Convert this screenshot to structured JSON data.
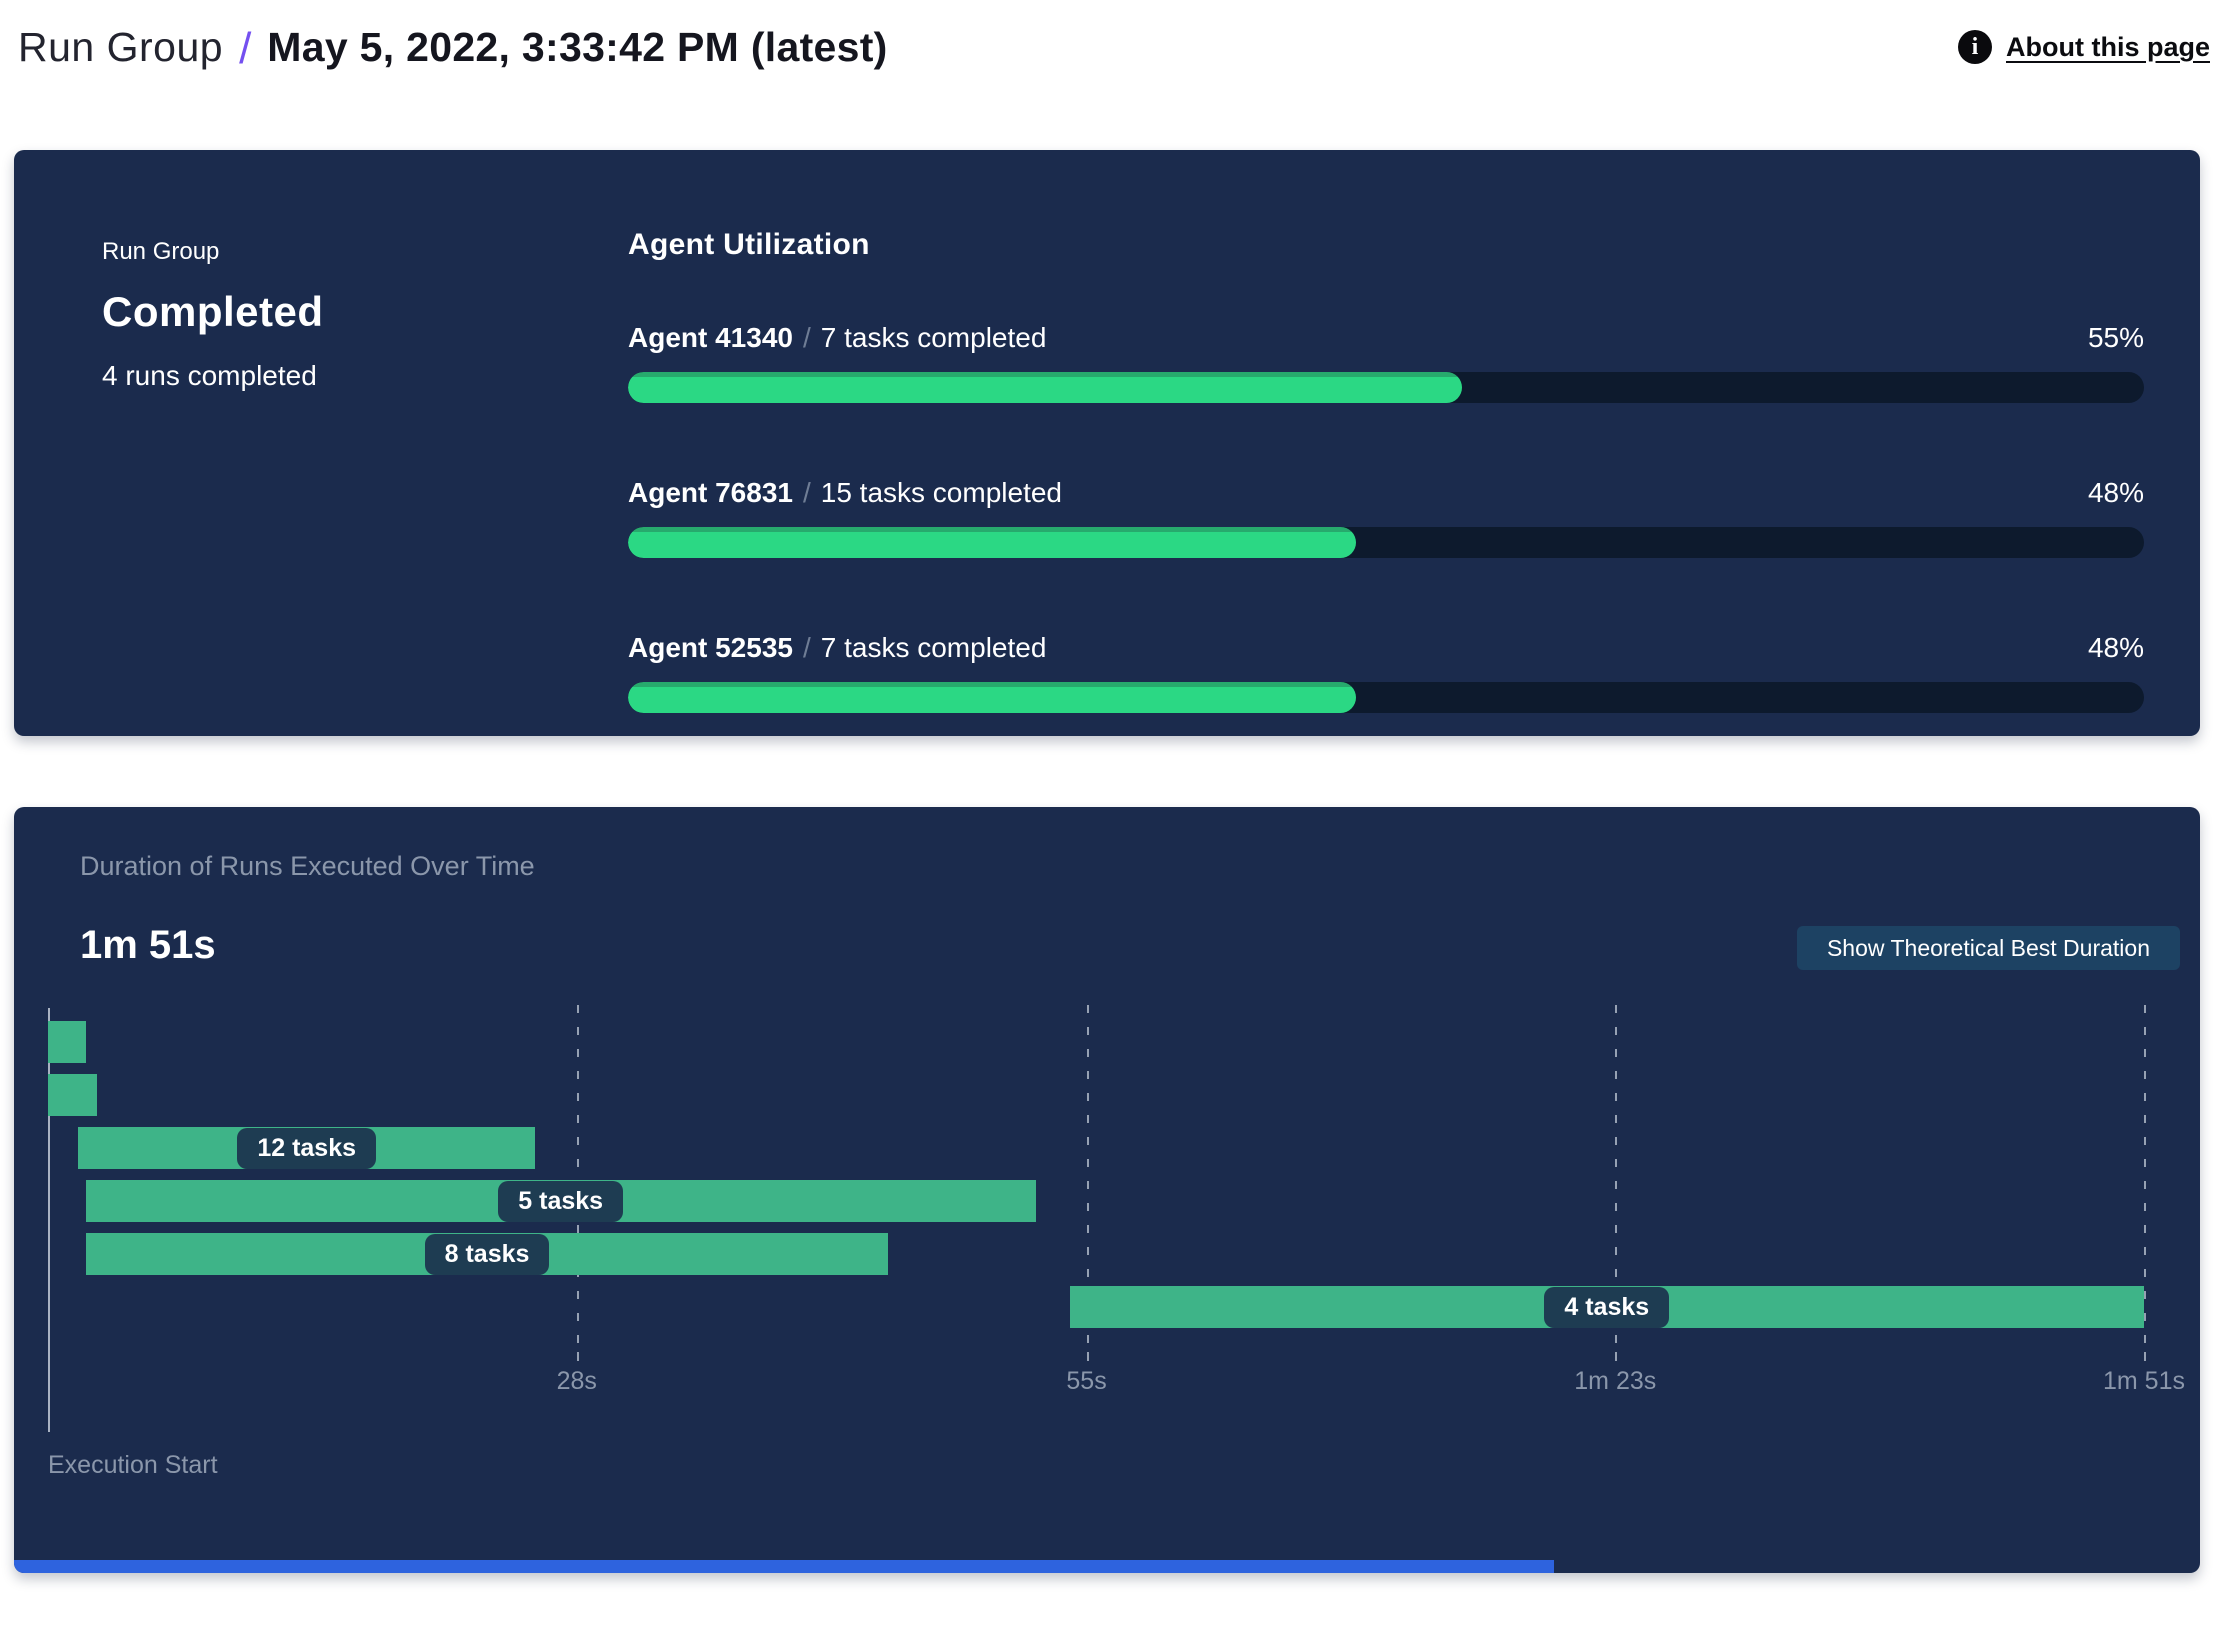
{
  "header": {
    "breadcrumb_root": "Run Group",
    "separator": "/",
    "title": "May 5, 2022, 3:33:42 PM (latest)",
    "about_link": "About this page",
    "info_icon_glyph": "i"
  },
  "summary": {
    "eyebrow": "Run Group",
    "status": "Completed",
    "subtext": "4 runs completed"
  },
  "agent_utilization": {
    "heading": "Agent Utilization",
    "rows": [
      {
        "agent": "Agent 41340",
        "separator": "/",
        "detail": "7 tasks completed",
        "percent_label": "55%",
        "percent_value": 55
      },
      {
        "agent": "Agent 76831",
        "separator": "/",
        "detail": "15 tasks completed",
        "percent_label": "48%",
        "percent_value": 48
      },
      {
        "agent": "Agent 52535",
        "separator": "/",
        "detail": "7 tasks completed",
        "percent_label": "48%",
        "percent_value": 48
      }
    ]
  },
  "duration_panel": {
    "subtitle": "Duration of Runs Executed Over Time",
    "total_duration": "1m 51s",
    "button_label": "Show Theoretical Best Duration",
    "execution_start_label": "Execution Start"
  },
  "chart_data": {
    "type": "bar",
    "variant": "horizontal-gantt",
    "title": "Duration of Runs Executed Over Time",
    "total_duration_label": "1m 51s",
    "x_unit": "seconds",
    "xlim": [
      0,
      111
    ],
    "grid": "dashed-vertical",
    "x_ticks": [
      {
        "label": "28s",
        "value": 28
      },
      {
        "label": "55s",
        "value": 55
      },
      {
        "label": "1m 23s",
        "value": 83
      },
      {
        "label": "1m 51s",
        "value": 111
      }
    ],
    "origin_label": "Execution Start",
    "runs": [
      {
        "start_s": 0,
        "end_s": 2,
        "label": ""
      },
      {
        "start_s": 0,
        "end_s": 2.6,
        "label": ""
      },
      {
        "start_s": 1.6,
        "end_s": 25.8,
        "label": "12 tasks"
      },
      {
        "start_s": 2,
        "end_s": 52.3,
        "label": "5 tasks"
      },
      {
        "start_s": 2,
        "end_s": 44.5,
        "label": "8 tasks"
      },
      {
        "start_s": 54.1,
        "end_s": 111,
        "label": "4 tasks"
      }
    ]
  },
  "colors": {
    "panel_navy": "#1b2b4d",
    "progress_track": "#0d1a2d",
    "progress_green": "#2bd884",
    "gantt_green": "#3eb488",
    "pill_navy": "#1e3c52",
    "muted_text": "#8b97ab",
    "accent_purple": "#7450f0",
    "bottom_bar_blue": "#2e63de"
  }
}
